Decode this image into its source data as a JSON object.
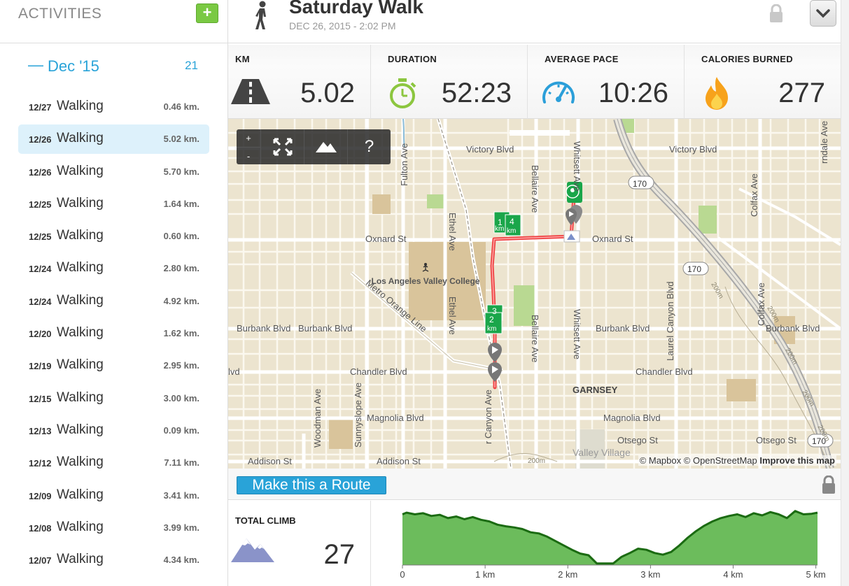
{
  "sidebar": {
    "title": "ACTIVITIES",
    "add_label": "+",
    "month": {
      "dash": "—",
      "label": "Dec '15",
      "count": "21"
    },
    "activities": [
      {
        "date": "12/27",
        "type": "Walking",
        "distance": "0.46 km."
      },
      {
        "date": "12/26",
        "type": "Walking",
        "distance": "5.02 km.",
        "selected": true
      },
      {
        "date": "12/26",
        "type": "Walking",
        "distance": "5.70 km."
      },
      {
        "date": "12/25",
        "type": "Walking",
        "distance": "1.64 km."
      },
      {
        "date": "12/25",
        "type": "Walking",
        "distance": "0.60 km."
      },
      {
        "date": "12/24",
        "type": "Walking",
        "distance": "2.80 km."
      },
      {
        "date": "12/24",
        "type": "Walking",
        "distance": "4.92 km."
      },
      {
        "date": "12/20",
        "type": "Walking",
        "distance": "1.62 km."
      },
      {
        "date": "12/19",
        "type": "Walking",
        "distance": "2.95 km."
      },
      {
        "date": "12/15",
        "type": "Walking",
        "distance": "3.00 km."
      },
      {
        "date": "12/13",
        "type": "Walking",
        "distance": "0.09 km."
      },
      {
        "date": "12/12",
        "type": "Walking",
        "distance": "7.11 km."
      },
      {
        "date": "12/09",
        "type": "Walking",
        "distance": "3.41 km."
      },
      {
        "date": "12/08",
        "type": "Walking",
        "distance": "3.99 km."
      },
      {
        "date": "12/07",
        "type": "Walking",
        "distance": "4.34 km."
      }
    ]
  },
  "header": {
    "title": "Saturday Walk",
    "datetime": "DEC 26, 2015  -  2:02 PM",
    "icons": {
      "activity": "walker-icon",
      "privacy": "lock-icon",
      "menu": "chevron-down-icon"
    }
  },
  "stats": {
    "km": {
      "label": "KM",
      "value": "5.02",
      "icon": "road-icon"
    },
    "duration": {
      "label": "DURATION",
      "value": "52:23",
      "icon": "stopwatch-icon"
    },
    "pace": {
      "label": "AVERAGE PACE",
      "value": "10:26",
      "icon": "speedometer-icon"
    },
    "calories": {
      "label": "CALORIES BURNED",
      "value": "277",
      "icon": "flame-icon"
    }
  },
  "map": {
    "controls": {
      "zoom_in": "+",
      "zoom_out": "-",
      "help": "?"
    },
    "streets": {
      "victory": "Victory Blvd",
      "victory_east": "Victory Blvd",
      "oxnard": "Oxnard St",
      "oxnard_east": "Oxnard St",
      "burbank_w1": "Burbank Blvd",
      "burbank_w2": "Burbank Blvd",
      "burbank_mid": "Burbank Blvd",
      "burbank_east": "Burbank Blvd",
      "chandler": "Chandler Blvd",
      "chandler_east": "Chandler Blvd",
      "chandler_edge": "lvd",
      "magnolia": "Magnolia Blvd",
      "magnolia_east": "Magnolia Blvd",
      "otsego": "Otsego St",
      "otsego_east": "Otsego St",
      "addison": "Addison St",
      "addison_mid": "Addison St",
      "fulton": "Fulton Ave",
      "ethel_n": "Ethel Ave",
      "ethel_s": "Ethel Ave",
      "bellaire_n": "Bellaire Ave",
      "bellaire_s": "Bellaire Ave",
      "whitsett_n": "Whitsett Ave",
      "whitsett_s": "Whitsett Ave",
      "laurel": "Laurel Canyon Blvd",
      "laurel_short": "r Canyon Ave",
      "colfax": "Colfax Ave",
      "colfax_n": "Colfax Ave",
      "rinsdale": "rndale Ave",
      "woodman": "Woodman Ave",
      "sunnyslope": "Sunnyslope Ave",
      "metro": "Metro Orange Line",
      "college": "Los Angeles Valley College",
      "garnsey": "GARNSEY",
      "valley": "Valley Village",
      "hwy_1": "170",
      "hwy_2": "170",
      "hwy_3": "170",
      "contour_1": "200m",
      "contour_2": "200m",
      "contour_3": "200m",
      "contour_4": "200m",
      "contour_5": "200m",
      "contour_6": "200m"
    },
    "markers": {
      "m1": "1",
      "m1_unit": "km",
      "m4": "4",
      "m4_unit": "km",
      "m3": "3",
      "m2": "2",
      "m2_unit": "km"
    },
    "attribution": {
      "mapbox": "© Mapbox",
      "osm": "© OpenStreetMap",
      "improve": "Improve this map"
    }
  },
  "route": {
    "button_label": "Make this a Route"
  },
  "climb": {
    "label": "TOTAL CLIMB",
    "value": "27",
    "icon": "mountains-icon"
  },
  "colors": {
    "accent": "#29a3d8",
    "add_green": "#7ac943",
    "route_red": "#ee4444",
    "marker_green": "#1aa64a",
    "elevation_fill": "#6cbc5c",
    "elevation_line": "#1b6b12"
  },
  "chart_data": {
    "type": "area",
    "xlabel": "",
    "ylabel": "",
    "tick_labels": [
      "0",
      "1 km",
      "2 km",
      "3 km",
      "4 km",
      "5 km"
    ],
    "xlim": [
      0,
      5.02
    ],
    "ylim": [
      0,
      100
    ],
    "x": [
      0,
      0.05,
      0.15,
      0.25,
      0.35,
      0.45,
      0.55,
      0.65,
      0.75,
      0.85,
      0.95,
      1.05,
      1.15,
      1.25,
      1.35,
      1.45,
      1.55,
      1.65,
      1.75,
      1.85,
      1.95,
      2.05,
      2.15,
      2.25,
      2.35,
      2.45,
      2.55,
      2.65,
      2.75,
      2.85,
      2.95,
      3.05,
      3.15,
      3.25,
      3.35,
      3.45,
      3.55,
      3.65,
      3.75,
      3.85,
      3.95,
      4.05,
      4.15,
      4.25,
      4.35,
      4.45,
      4.55,
      4.65,
      4.75,
      4.85,
      4.95,
      5.02
    ],
    "y": [
      93,
      96,
      93,
      95,
      90,
      92,
      86,
      89,
      84,
      88,
      83,
      80,
      74,
      71,
      69,
      66,
      60,
      58,
      52,
      44,
      36,
      28,
      21,
      18,
      3,
      3,
      3,
      15,
      22,
      30,
      28,
      22,
      19,
      24,
      36,
      50,
      62,
      72,
      80,
      86,
      90,
      93,
      88,
      95,
      91,
      97,
      93,
      86,
      99,
      93,
      94,
      96
    ]
  }
}
